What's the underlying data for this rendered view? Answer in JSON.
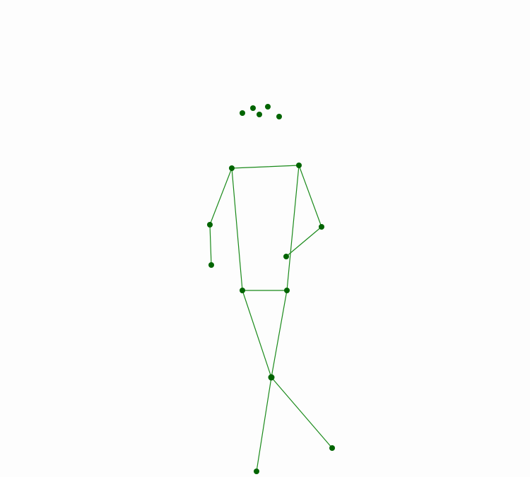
{
  "figure": {
    "description_visible_text": "",
    "colors": {
      "background": "#fdfdfd",
      "keypoint": "#006400",
      "bone": "#1a8a1a"
    },
    "keypoints": [
      {
        "id": "head-1"
      },
      {
        "id": "head-2"
      },
      {
        "id": "head-3"
      },
      {
        "id": "head-4"
      },
      {
        "id": "head-5"
      },
      {
        "id": "left-shoulder"
      },
      {
        "id": "right-shoulder"
      },
      {
        "id": "left-elbow"
      },
      {
        "id": "right-elbow"
      },
      {
        "id": "left-wrist"
      },
      {
        "id": "right-wrist"
      },
      {
        "id": "left-hip"
      },
      {
        "id": "right-hip"
      },
      {
        "id": "knee"
      },
      {
        "id": "left-ankle"
      },
      {
        "id": "right-ankle"
      }
    ],
    "bones": [
      [
        "left-shoulder",
        "right-shoulder"
      ],
      [
        "left-shoulder",
        "left-elbow"
      ],
      [
        "left-elbow",
        "left-wrist"
      ],
      [
        "right-shoulder",
        "right-elbow"
      ],
      [
        "right-elbow",
        "right-wrist"
      ],
      [
        "left-shoulder",
        "left-hip"
      ],
      [
        "right-shoulder",
        "right-hip"
      ],
      [
        "left-hip",
        "right-hip"
      ],
      [
        "left-hip",
        "knee"
      ],
      [
        "right-hip",
        "knee"
      ],
      [
        "knee",
        "left-ankle"
      ],
      [
        "knee",
        "right-ankle"
      ]
    ]
  }
}
